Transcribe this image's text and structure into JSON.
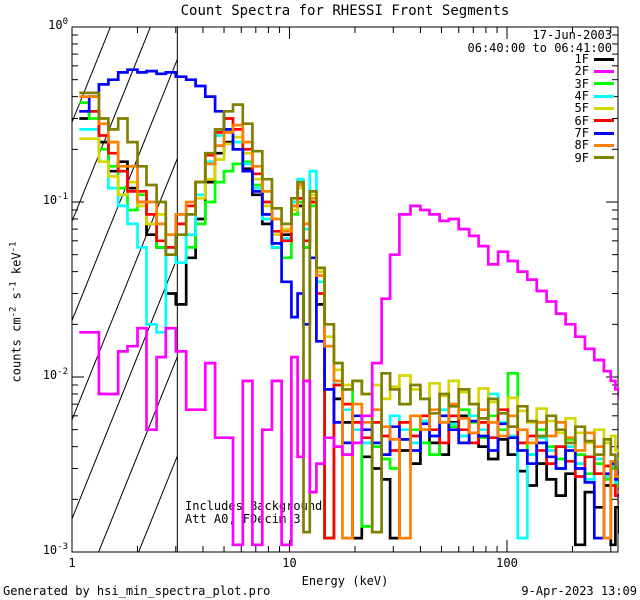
{
  "title": "Count Spectra for RHESSI Front Segments",
  "header": {
    "date": "17-Jun-2003",
    "time_range": "06:40:00 to 06:41:00"
  },
  "annotations": {
    "line1": "Includes Background",
    "line2": "Att A0, FDecim 3"
  },
  "footer": {
    "left": "Generated by hsi_min_spectra_plot.pro",
    "right": "9-Apr-2023 13:09"
  },
  "colors": {
    "background": "#ffffff",
    "axis": "#000000"
  },
  "chart_data": {
    "type": "line",
    "mode": "log-log-stairstep",
    "title": "Count Spectra for RHESSI Front Segments",
    "xlabel": "Energy (keV)",
    "ylabel": "counts cm⁻² s⁻¹ keV⁻¹",
    "ylabel_parts": [
      {
        "t": "counts cm"
      },
      {
        "sup": "-2"
      },
      {
        "t": " s"
      },
      {
        "sup": "-1"
      },
      {
        "t": " keV"
      },
      {
        "sup": "-1"
      }
    ],
    "xlim": [
      1,
      330
    ],
    "ylim": [
      0.001,
      1
    ],
    "x_ticks": [
      1,
      10,
      100
    ],
    "y_tick_exponents": [
      "0",
      "-1",
      "-2",
      "-3"
    ],
    "grid": false,
    "legend_position": "top-right-inside",
    "hatch_region": {
      "x_from": 1,
      "x_to": 3.05,
      "style": "diagonal-lines"
    },
    "energies_keV": [
      1.08,
      1.2,
      1.33,
      1.47,
      1.63,
      1.8,
      2.0,
      2.2,
      2.45,
      2.7,
      3.0,
      3.35,
      3.7,
      4.1,
      4.55,
      5.0,
      5.5,
      6.1,
      6.75,
      7.5,
      8.3,
      9.2,
      10.2,
      10.9,
      11.6,
      12.4,
      13.3,
      14.5,
      16,
      17.5,
      19.5,
      21.5,
      24,
      26.5,
      29,
      32,
      36,
      40,
      44,
      49,
      54,
      60,
      67,
      74,
      82,
      91,
      101,
      112,
      124,
      137,
      152,
      168,
      186,
      206,
      228,
      252,
      279,
      300,
      315,
      330
    ],
    "draw_order": [
      "1F",
      "3F",
      "4F",
      "5F",
      "6F",
      "7F",
      "8F",
      "9F",
      "2F"
    ],
    "series": [
      {
        "name": "1F",
        "color": "#000000",
        "values": [
          0.3,
          0.33,
          0.22,
          0.15,
          0.17,
          0.12,
          0.1,
          0.065,
          0.055,
          0.03,
          0.026,
          0.048,
          0.08,
          0.13,
          0.19,
          0.22,
          0.2,
          0.155,
          0.11,
          0.075,
          0.055,
          0.065,
          0.1,
          0.095,
          0.055,
          0.1,
          0.026,
          0.0012,
          0.0075,
          0.0055,
          0.0012,
          0.0035,
          0.003,
          0.0026,
          0.0012,
          0.0038,
          0.0032,
          0.005,
          0.0042,
          0.0036,
          0.0055,
          0.006,
          0.0048,
          0.004,
          0.0034,
          0.0044,
          0.0036,
          0.0029,
          0.0024,
          0.0032,
          0.0026,
          0.0021,
          0.0028,
          0.0011,
          0.0022,
          0.0018,
          0.0024,
          0.0011,
          0.0018,
          0.0013
        ]
      },
      {
        "name": "2F",
        "color": "#FF00FF",
        "values": [
          0.018,
          0.018,
          0.008,
          0.008,
          0.014,
          0.015,
          0.019,
          0.005,
          0.013,
          0.019,
          0.014,
          0.0065,
          0.0065,
          0.012,
          0.0045,
          0.0045,
          0.0011,
          0.0095,
          0.0011,
          0.005,
          0.0095,
          0.0011,
          0.013,
          0.0035,
          0.0095,
          0.0022,
          0.0032,
          0.0045,
          0.004,
          0.0036,
          0.0042,
          0.006,
          0.012,
          0.028,
          0.05,
          0.085,
          0.095,
          0.09,
          0.085,
          0.078,
          0.08,
          0.07,
          0.064,
          0.056,
          0.044,
          0.052,
          0.046,
          0.04,
          0.036,
          0.031,
          0.027,
          0.023,
          0.02,
          0.017,
          0.0145,
          0.0125,
          0.0108,
          0.0095,
          0.0085,
          0.0076
        ]
      },
      {
        "name": "3F",
        "color": "#00FF00",
        "values": [
          0.37,
          0.3,
          0.2,
          0.16,
          0.12,
          0.09,
          0.11,
          0.075,
          0.055,
          0.05,
          0.065,
          0.055,
          0.075,
          0.1,
          0.13,
          0.15,
          0.165,
          0.17,
          0.125,
          0.085,
          0.055,
          0.048,
          0.085,
          0.1,
          0.055,
          0.095,
          0.03,
          0.0012,
          0.012,
          0.0085,
          0.006,
          0.0014,
          0.004,
          0.0034,
          0.003,
          0.0044,
          0.005,
          0.0042,
          0.0036,
          0.006,
          0.0052,
          0.0065,
          0.0055,
          0.0045,
          0.006,
          0.005,
          0.0105,
          0.0042,
          0.0036,
          0.005,
          0.004,
          0.0034,
          0.0044,
          0.0036,
          0.0028,
          0.0032,
          0.0026,
          0.003,
          0.0024,
          0.0019
        ]
      },
      {
        "name": "4F",
        "color": "#00FFFF",
        "values": [
          0.26,
          0.26,
          0.17,
          0.12,
          0.095,
          0.075,
          0.055,
          0.02,
          0.018,
          0.055,
          0.045,
          0.065,
          0.11,
          0.17,
          0.24,
          0.26,
          0.22,
          0.165,
          0.12,
          0.08,
          0.055,
          0.062,
          0.1,
          0.135,
          0.07,
          0.15,
          0.035,
          0.015,
          0.009,
          0.0065,
          0.005,
          0.0042,
          0.0055,
          0.0046,
          0.006,
          0.005,
          0.0042,
          0.0056,
          0.0046,
          0.0065,
          0.0054,
          0.0046,
          0.006,
          0.005,
          0.008,
          0.0055,
          0.0046,
          0.0012,
          0.0036,
          0.0045,
          0.0038,
          0.003,
          0.004,
          0.0032,
          0.0026,
          0.0034,
          0.0027,
          0.0031,
          0.0025,
          0.002
        ]
      },
      {
        "name": "5F",
        "color": "#D6D600",
        "values": [
          0.23,
          0.23,
          0.17,
          0.14,
          0.11,
          0.13,
          0.095,
          0.075,
          0.085,
          0.065,
          0.075,
          0.085,
          0.105,
          0.135,
          0.175,
          0.215,
          0.235,
          0.19,
          0.135,
          0.095,
          0.065,
          0.07,
          0.09,
          0.12,
          0.075,
          0.11,
          0.04,
          0.017,
          0.011,
          0.009,
          0.0095,
          0.008,
          0.009,
          0.0075,
          0.0088,
          0.0102,
          0.0085,
          0.0075,
          0.0092,
          0.0078,
          0.0095,
          0.0082,
          0.007,
          0.0086,
          0.0072,
          0.0062,
          0.0076,
          0.0064,
          0.0055,
          0.0066,
          0.0056,
          0.0048,
          0.0058,
          0.0048,
          0.0042,
          0.005,
          0.0042,
          0.0046,
          0.0038,
          0.0034
        ]
      },
      {
        "name": "6F",
        "color": "#FF0000",
        "values": [
          0.33,
          0.33,
          0.24,
          0.19,
          0.15,
          0.115,
          0.115,
          0.085,
          0.06,
          0.055,
          0.075,
          0.095,
          0.13,
          0.185,
          0.25,
          0.3,
          0.26,
          0.2,
          0.145,
          0.1,
          0.068,
          0.06,
          0.095,
          0.105,
          0.06,
          0.1,
          0.03,
          0.0012,
          0.009,
          0.007,
          0.0055,
          0.0045,
          0.0055,
          0.0046,
          0.0038,
          0.0055,
          0.0046,
          0.006,
          0.005,
          0.0042,
          0.006,
          0.005,
          0.0042,
          0.0055,
          0.0045,
          0.0065,
          0.0052,
          0.0042,
          0.0046,
          0.0038,
          0.0032,
          0.004,
          0.0033,
          0.0027,
          0.0035,
          0.0028,
          0.0031,
          0.0024,
          0.0021,
          0.0019
        ]
      },
      {
        "name": "7F",
        "color": "#0000FF",
        "values": [
          0.33,
          0.4,
          0.47,
          0.5,
          0.55,
          0.57,
          0.55,
          0.56,
          0.54,
          0.55,
          0.52,
          0.5,
          0.46,
          0.4,
          0.33,
          0.26,
          0.2,
          0.15,
          0.115,
          0.085,
          0.058,
          0.035,
          0.022,
          0.03,
          0.02,
          0.048,
          0.016,
          0.0085,
          0.0055,
          0.0042,
          0.006,
          0.005,
          0.0042,
          0.0036,
          0.0052,
          0.0044,
          0.0038,
          0.0054,
          0.0046,
          0.006,
          0.005,
          0.0042,
          0.0056,
          0.0046,
          0.0038,
          0.0054,
          0.0045,
          0.0038,
          0.0032,
          0.0042,
          0.0035,
          0.003,
          0.0038,
          0.003,
          0.0025,
          0.0012,
          0.0028,
          0.0032,
          0.0026,
          0.0021
        ]
      },
      {
        "name": "8F",
        "color": "#FF8000",
        "values": [
          0.4,
          0.4,
          0.28,
          0.22,
          0.16,
          0.16,
          0.1,
          0.1,
          0.075,
          0.065,
          0.085,
          0.1,
          0.13,
          0.165,
          0.21,
          0.25,
          0.275,
          0.22,
          0.16,
          0.115,
          0.08,
          0.068,
          0.095,
          0.125,
          0.075,
          0.105,
          0.038,
          0.015,
          0.0095,
          0.0012,
          0.007,
          0.0055,
          0.0065,
          0.0052,
          0.0044,
          0.0012,
          0.006,
          0.005,
          0.0065,
          0.0055,
          0.007,
          0.0058,
          0.0048,
          0.0065,
          0.0055,
          0.0046,
          0.006,
          0.005,
          0.0042,
          0.0055,
          0.0046,
          0.0055,
          0.0045,
          0.0038,
          0.0048,
          0.004,
          0.0012,
          0.0033,
          0.0027,
          0.0022
        ]
      },
      {
        "name": "9F",
        "color": "#808000",
        "values": [
          0.42,
          0.42,
          0.3,
          0.26,
          0.3,
          0.22,
          0.16,
          0.125,
          0.1,
          0.05,
          0.065,
          0.085,
          0.13,
          0.19,
          0.26,
          0.33,
          0.36,
          0.28,
          0.195,
          0.135,
          0.092,
          0.075,
          0.105,
          0.13,
          0.0013,
          0.115,
          0.042,
          0.02,
          0.012,
          0.0085,
          0.0095,
          0.008,
          0.0013,
          0.0105,
          0.0085,
          0.007,
          0.009,
          0.0075,
          0.0062,
          0.008,
          0.0068,
          0.0085,
          0.007,
          0.0058,
          0.0075,
          0.0062,
          0.0052,
          0.0068,
          0.0056,
          0.0046,
          0.006,
          0.005,
          0.0042,
          0.0052,
          0.0043,
          0.0036,
          0.0044,
          0.0036,
          0.003,
          0.0025
        ]
      }
    ]
  }
}
